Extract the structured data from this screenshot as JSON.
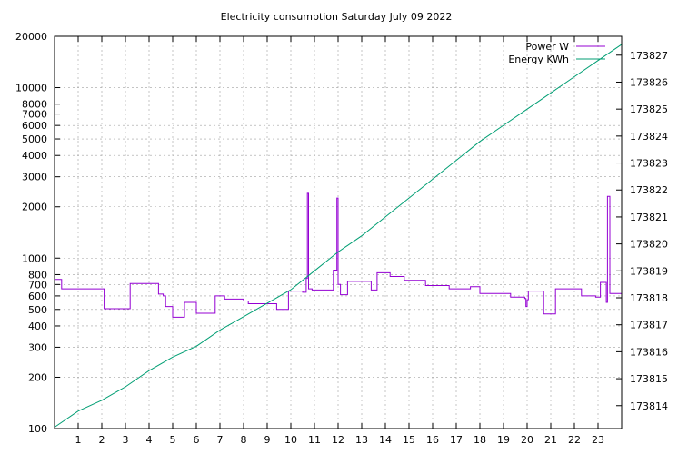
{
  "chart_data": {
    "type": "line",
    "title": "Electricity consumption Saturday July 09 2022",
    "x_ticks": [
      1,
      2,
      3,
      4,
      5,
      6,
      7,
      8,
      9,
      10,
      11,
      12,
      13,
      14,
      15,
      16,
      17,
      18,
      19,
      20,
      21,
      22,
      23
    ],
    "xlim": [
      0,
      24
    ],
    "y_left": {
      "scale": "log",
      "ylim": [
        100,
        20000
      ],
      "ticks": [
        100,
        200,
        300,
        400,
        500,
        600,
        700,
        800,
        1000,
        2000,
        3000,
        4000,
        5000,
        6000,
        7000,
        8000,
        10000,
        20000
      ]
    },
    "y_right": {
      "scale": "linear",
      "ylim": [
        173813.15,
        173827.7
      ],
      "ticks": [
        173814,
        173815,
        173816,
        173817,
        173818,
        173819,
        173820,
        173821,
        173822,
        173823,
        173824,
        173825,
        173826,
        173827
      ]
    },
    "grid": true,
    "legend_position": "top-right",
    "series": [
      {
        "name": "Power W",
        "axis": "left",
        "color": "#9400d3",
        "step": true,
        "x": [
          0,
          0.3,
          1.5,
          2.1,
          2.6,
          2.9,
          3.2,
          3.7,
          4.4,
          4.6,
          4.7,
          5.0,
          5.5,
          5.7,
          6.0,
          6.3,
          6.8,
          7.2,
          7.6,
          8.0,
          8.1,
          8.2,
          8.5,
          9.0,
          9.4,
          9.6,
          9.9,
          10.2,
          10.5,
          10.65,
          10.7,
          10.75,
          10.9,
          11.3,
          11.8,
          11.9,
          11.95,
          12.0,
          12.1,
          12.4,
          12.9,
          13.4,
          13.6,
          13.65,
          14.2,
          14.5,
          14.8,
          15.2,
          15.7,
          16.2,
          16.7,
          17.2,
          17.6,
          18.0,
          18.6,
          19.3,
          19.9,
          19.95,
          20.0,
          20.05,
          20.4,
          20.7,
          21.2,
          21.7,
          22.3,
          22.9,
          23.1,
          23.3,
          23.35,
          23.4,
          23.5,
          23.8,
          24.0
        ],
        "y": [
          750,
          660,
          660,
          505,
          505,
          505,
          710,
          710,
          615,
          600,
          520,
          450,
          550,
          550,
          475,
          475,
          600,
          575,
          575,
          560,
          560,
          540,
          540,
          540,
          500,
          500,
          640,
          640,
          630,
          760,
          2400,
          660,
          650,
          650,
          850,
          850,
          2250,
          700,
          610,
          730,
          730,
          650,
          650,
          820,
          780,
          780,
          740,
          740,
          690,
          690,
          660,
          660,
          680,
          620,
          620,
          590,
          580,
          520,
          570,
          640,
          640,
          470,
          660,
          660,
          600,
          590,
          720,
          720,
          550,
          2300,
          620,
          620,
          620
        ]
      },
      {
        "name": "Energy KWh",
        "axis": "right",
        "color": "#009e73",
        "x": [
          0,
          1,
          2,
          3,
          4,
          5,
          6,
          7,
          8,
          9,
          10,
          11,
          12,
          13,
          14,
          15,
          16,
          17,
          18,
          19,
          20,
          21,
          22,
          23,
          24
        ],
        "y": [
          173813.2,
          173813.8,
          173814.2,
          173814.7,
          173815.3,
          173815.8,
          173816.2,
          173816.8,
          173817.3,
          173817.8,
          173818.3,
          173819.0,
          173819.7,
          173820.3,
          173821.0,
          173821.7,
          173822.4,
          173823.1,
          173823.8,
          173824.4,
          173825.0,
          173825.6,
          173826.2,
          173826.8,
          173827.4
        ]
      }
    ]
  }
}
